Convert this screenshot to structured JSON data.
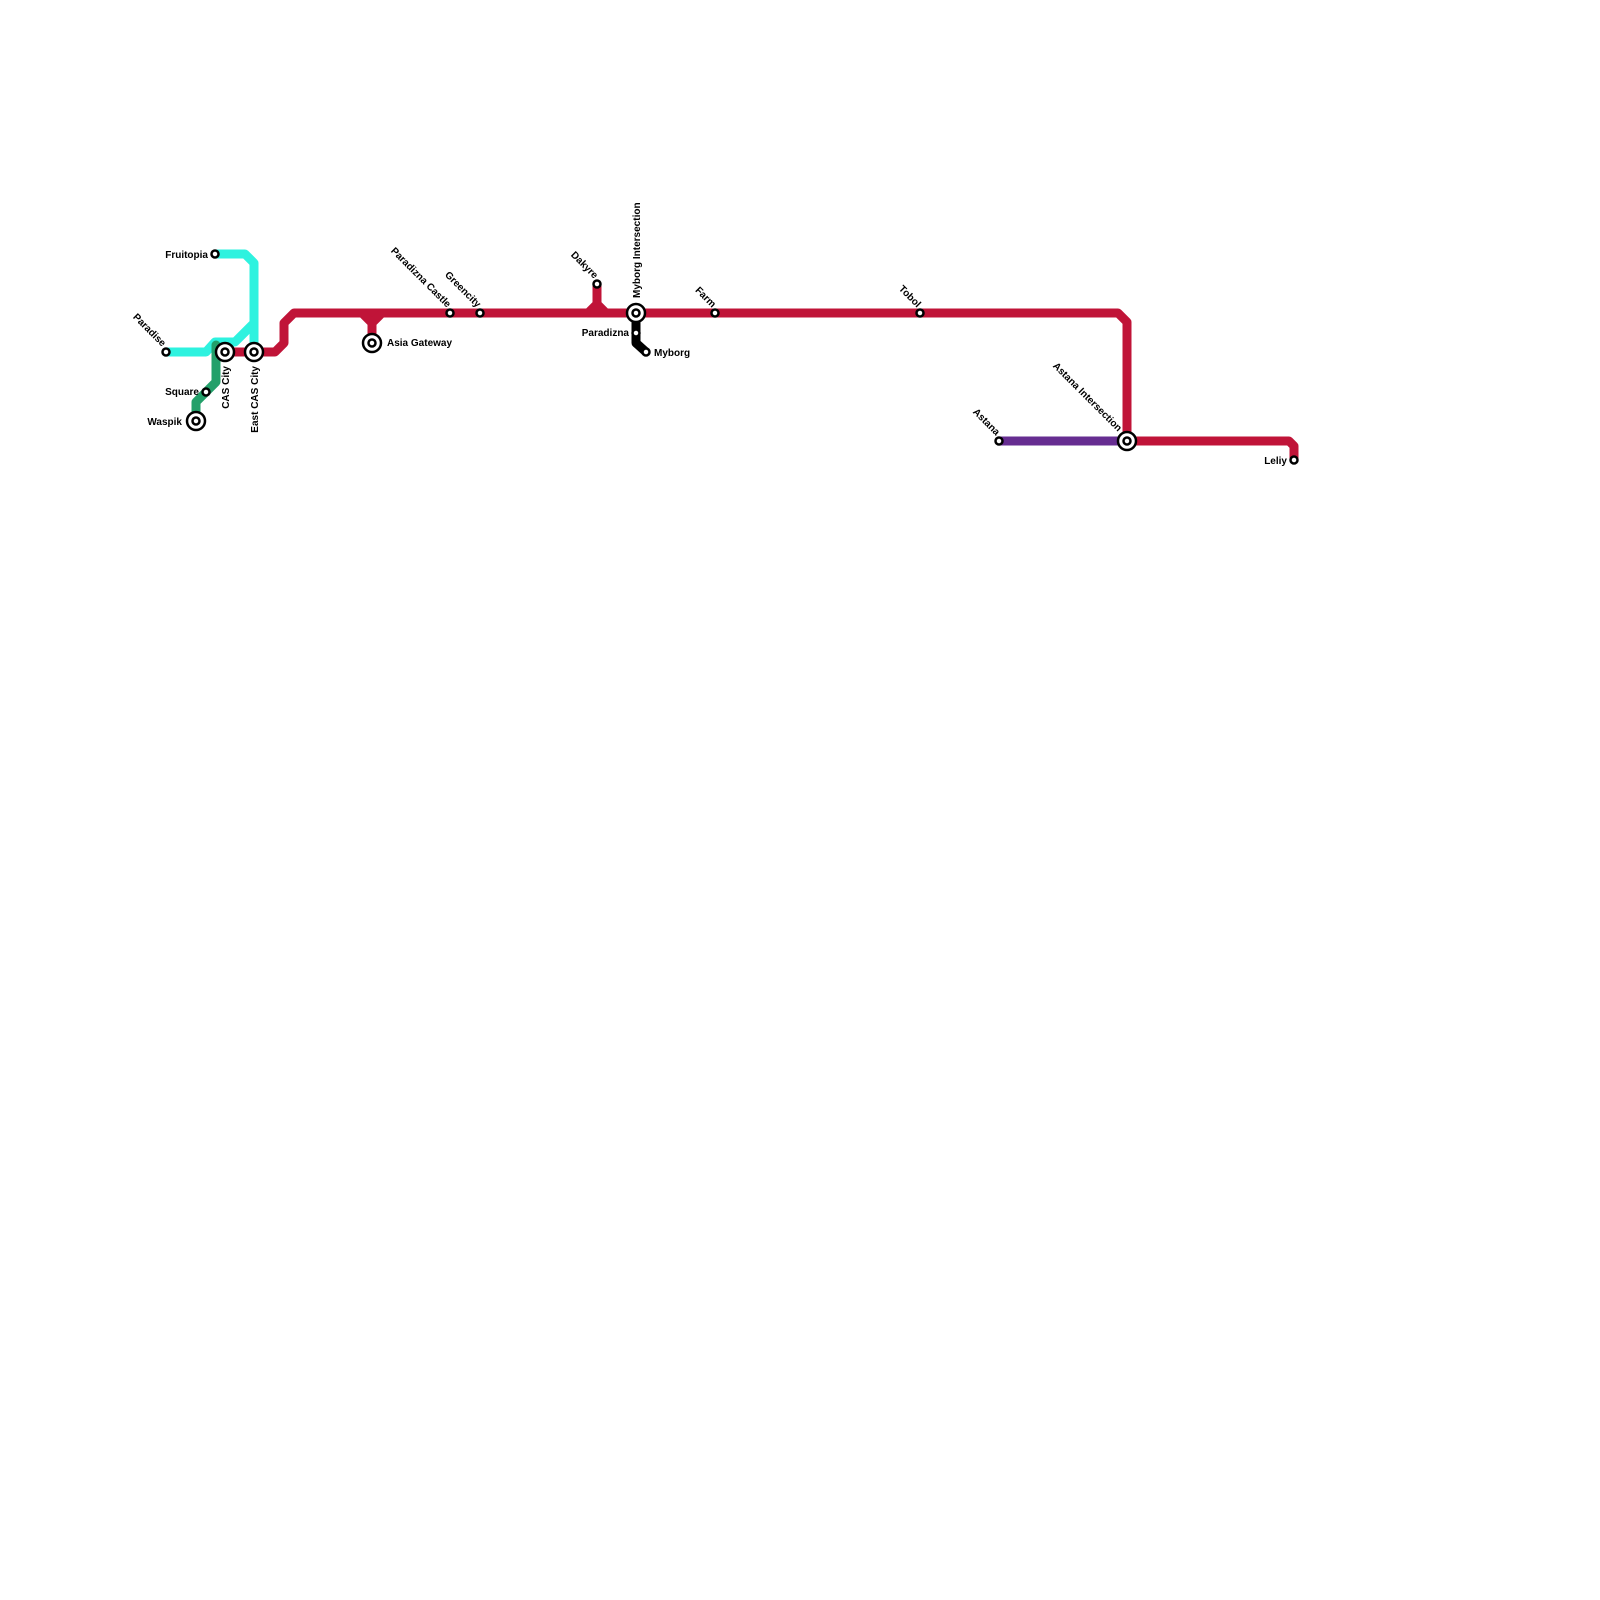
{
  "colors": {
    "red_line": "#c01438",
    "cyan_line": "#2ef2df",
    "green_line": "#23a06a",
    "purple_line": "#662d91",
    "black_line": "#000000"
  },
  "stations": {
    "fruitopia": "Fruitopia",
    "paradise": "Paradise",
    "cas_city": "CAS City",
    "east_cas_city": "East CAS City",
    "square": "Square",
    "waspik": "Waspik",
    "asia_gateway": "Asia Gateway",
    "paradizna_castle": "Paradizna Castle",
    "greencity": "Greencity",
    "dakyre": "Dakyre",
    "myborg_intersection": "Myborg Intersection",
    "paradizna": "Paradizna",
    "myborg": "Myborg",
    "farm": "Farm",
    "tobol": "Tobol",
    "astana": "Astana",
    "astana_intersection": "Astana Intersection",
    "leliy": "Leliy"
  }
}
